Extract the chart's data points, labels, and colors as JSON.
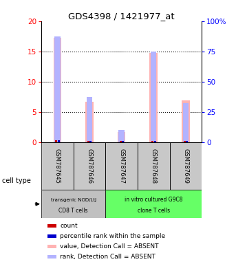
{
  "title": "GDS4398 / 1421977_at",
  "samples": [
    "GSM787645",
    "GSM787646",
    "GSM787647",
    "GSM787648",
    "GSM787649"
  ],
  "pink_values": [
    17.2,
    6.7,
    1.65,
    14.8,
    6.9
  ],
  "blue_rank_values": [
    17.5,
    7.5,
    2.0,
    15.0,
    6.5
  ],
  "red_count_values": [
    0.3,
    0.25,
    0.2,
    0.28,
    0.25
  ],
  "blue_count_values": [
    0.3,
    0.25,
    0.2,
    0.28,
    0.25
  ],
  "ylim_left": [
    0,
    20
  ],
  "ylim_right": [
    0,
    100
  ],
  "yticks_left": [
    0,
    5,
    10,
    15,
    20
  ],
  "yticks_right": [
    0,
    25,
    50,
    75,
    100
  ],
  "ytick_labels_left": [
    "0",
    "5",
    "10",
    "15",
    "20"
  ],
  "ytick_labels_right": [
    "0",
    "25",
    "50",
    "75",
    "100%"
  ],
  "group1_label_line1": "transgenic NOD/LtJ",
  "group1_label_line2": "CD8 T cells",
  "group2_label_line1": "in vitro cultured G9C8",
  "group2_label_line2": "clone T cells",
  "group1_color": "#c0c0c0",
  "group2_color": "#66ff66",
  "bar_bg_color": "#c8c8c8",
  "pink_color": "#ffb3b3",
  "blue_rank_color": "#b3b3ff",
  "red_color": "#cc0000",
  "blue_color": "#0000cc",
  "legend_items": [
    {
      "color": "#cc0000",
      "label": "count"
    },
    {
      "color": "#0000cc",
      "label": "percentile rank within the sample"
    },
    {
      "color": "#ffb3b3",
      "label": "value, Detection Call = ABSENT"
    },
    {
      "color": "#b3b3ff",
      "label": "rank, Detection Call = ABSENT"
    }
  ],
  "cell_type_label": "cell type"
}
